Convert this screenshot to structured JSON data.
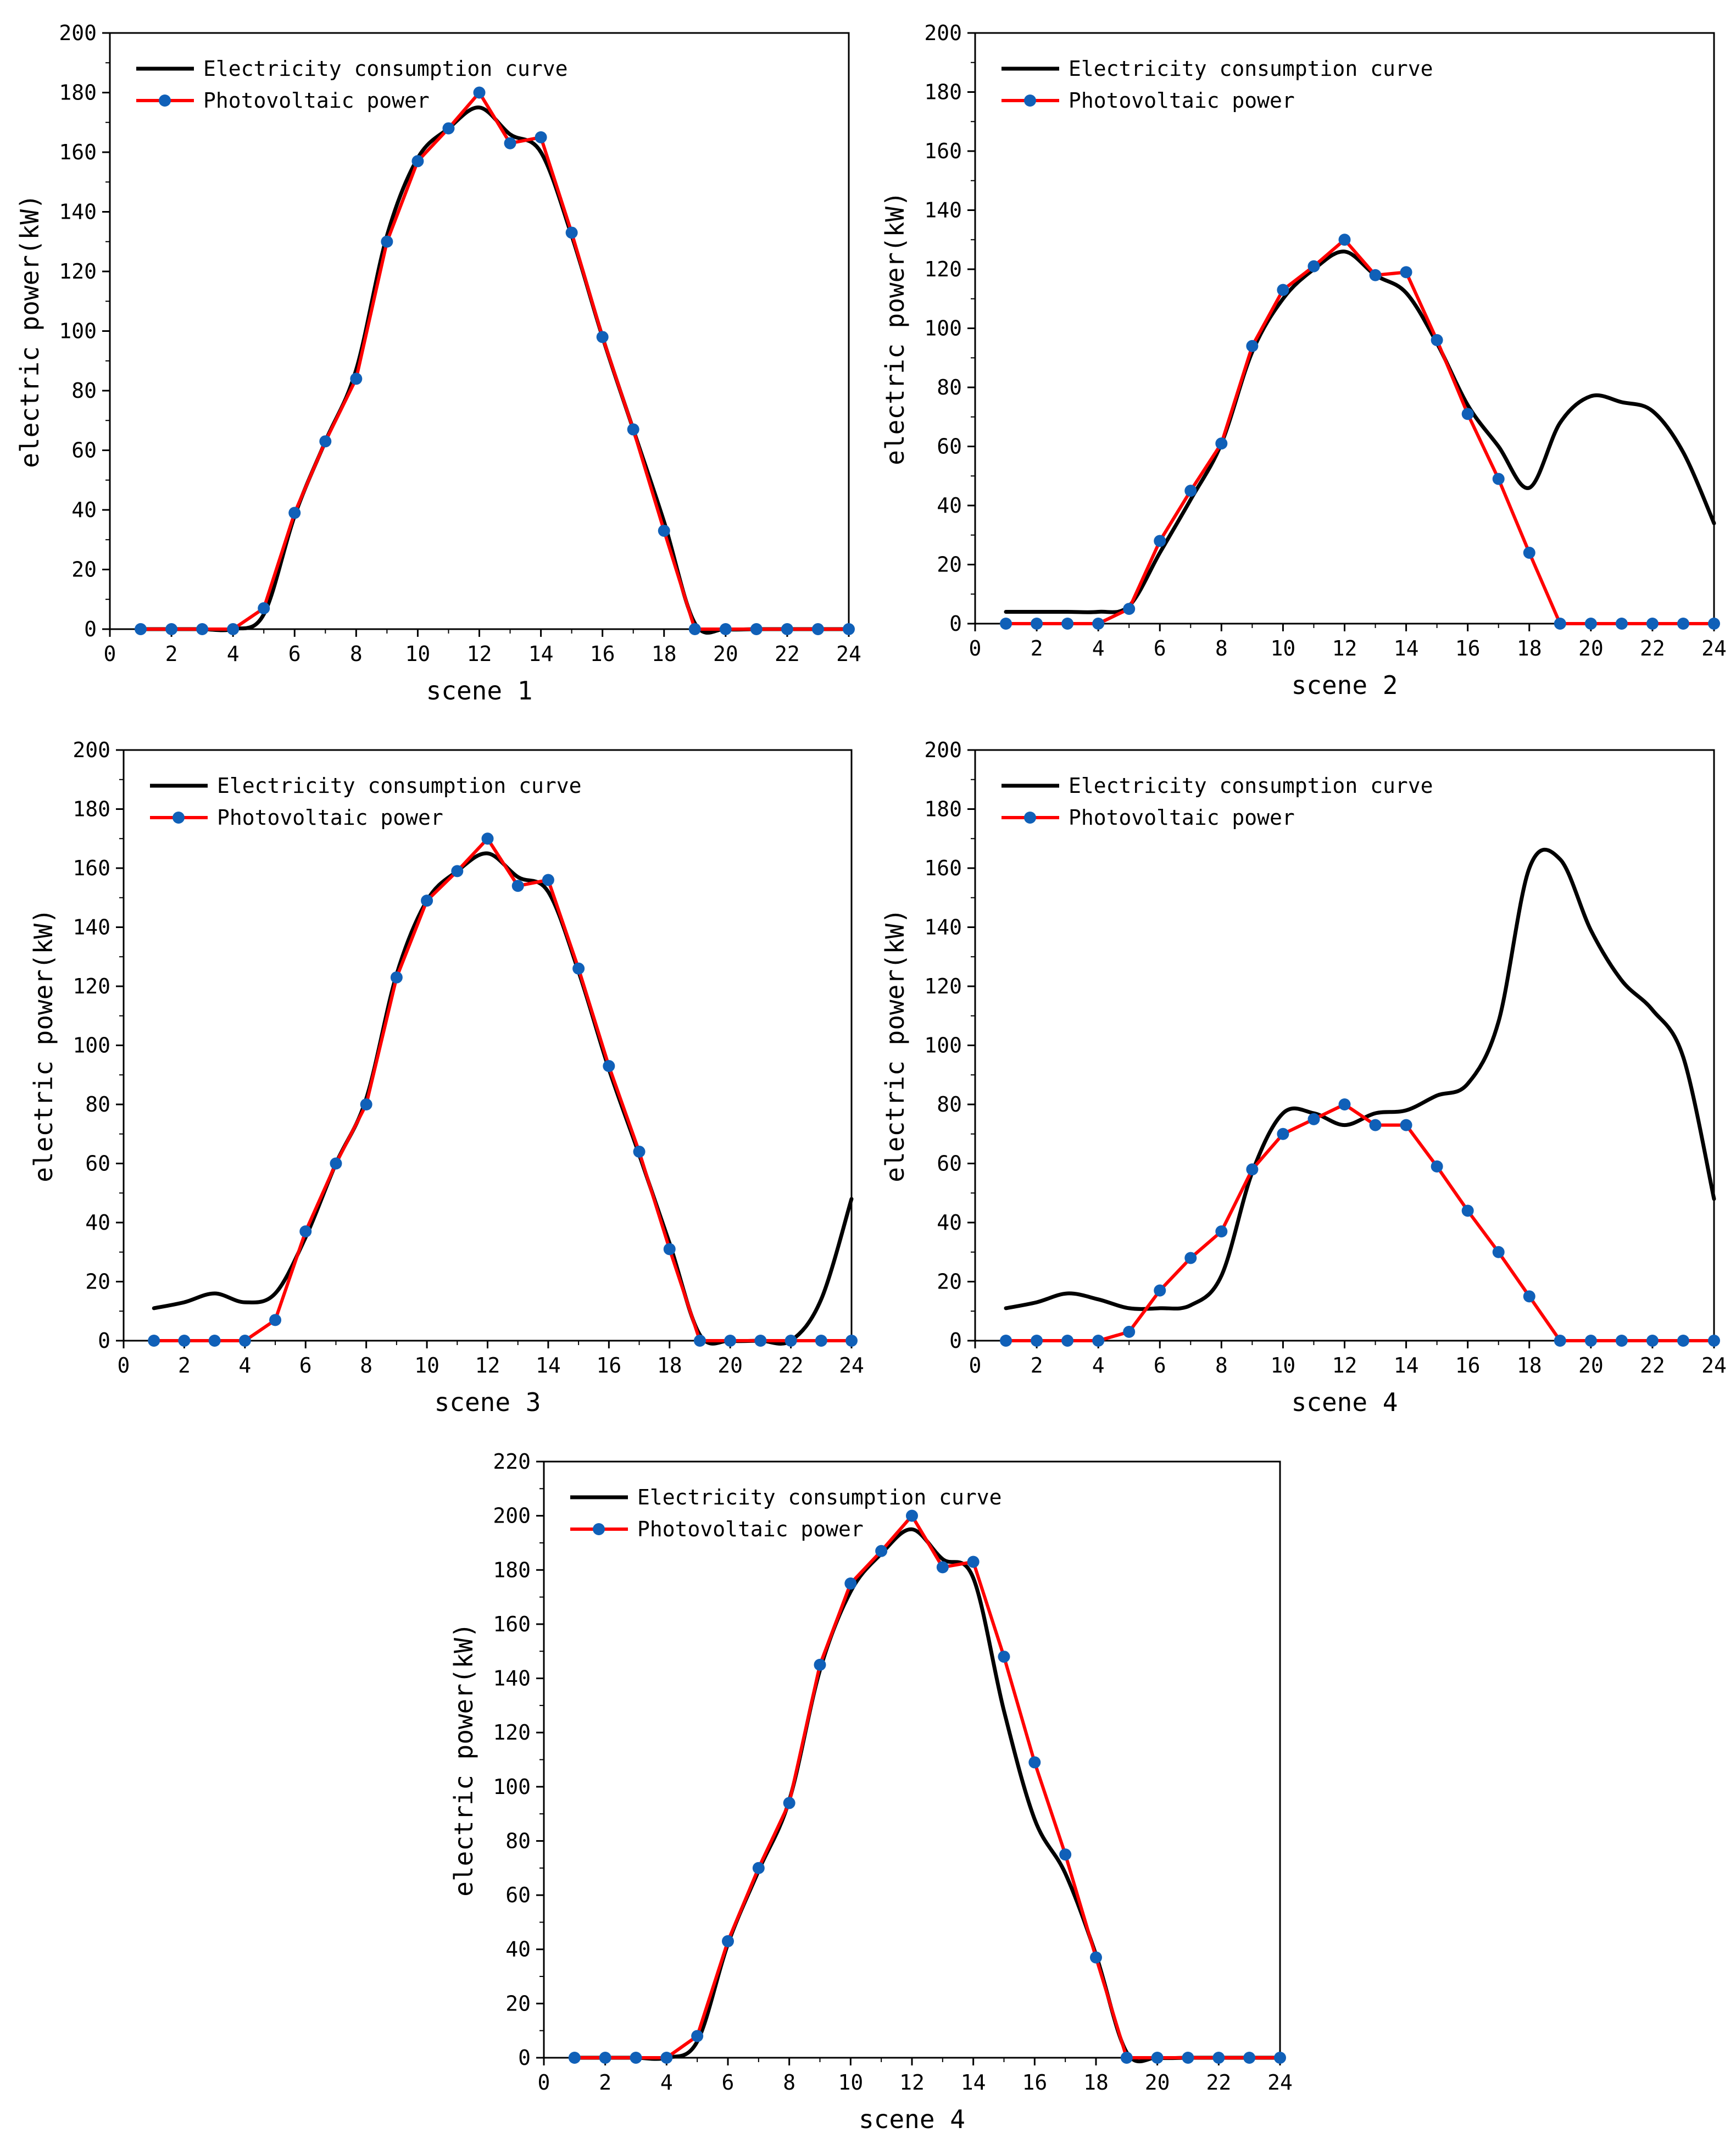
{
  "colors": {
    "consumption_line": "#000000",
    "pv_line": "#ff0000",
    "pv_marker": "#1060b8",
    "axis": "#000000"
  },
  "chart_data": [
    {
      "type": "line",
      "xlabel": "scene 1",
      "ylabel": "electric power(kW)",
      "xlim": [
        0,
        24
      ],
      "ylim": [
        0,
        200
      ],
      "xticks": [
        0,
        2,
        4,
        6,
        8,
        10,
        12,
        14,
        16,
        18,
        20,
        22,
        24
      ],
      "yticks": [
        0,
        20,
        40,
        60,
        80,
        100,
        120,
        140,
        160,
        180,
        200
      ],
      "legend_position": "top-left",
      "series": [
        {
          "name": "Electricity consumption curve",
          "style": "smooth-line",
          "x": [
            1,
            2,
            3,
            4,
            5,
            6,
            7,
            8,
            9,
            10,
            11,
            12,
            13,
            14,
            15,
            16,
            17,
            18,
            19,
            20,
            21,
            22,
            23,
            24
          ],
          "values": [
            0,
            0,
            0,
            0,
            5,
            38,
            63,
            87,
            132,
            158,
            168,
            175,
            166,
            160,
            132,
            98,
            67,
            36,
            2,
            0,
            0,
            0,
            0,
            0
          ]
        },
        {
          "name": "Photovoltaic power",
          "style": "line-markers",
          "x": [
            1,
            2,
            3,
            4,
            5,
            6,
            7,
            8,
            9,
            10,
            11,
            12,
            13,
            14,
            15,
            16,
            17,
            18,
            19,
            20,
            21,
            22,
            23,
            24
          ],
          "values": [
            0,
            0,
            0,
            0,
            7,
            39,
            63,
            84,
            130,
            157,
            168,
            180,
            163,
            165,
            133,
            98,
            67,
            33,
            0,
            0,
            0,
            0,
            0,
            0
          ]
        }
      ]
    },
    {
      "type": "line",
      "xlabel": "scene 2",
      "ylabel": "electric power(kW)",
      "xlim": [
        0,
        24
      ],
      "ylim": [
        0,
        200
      ],
      "xticks": [
        0,
        2,
        4,
        6,
        8,
        10,
        12,
        14,
        16,
        18,
        20,
        22,
        24
      ],
      "yticks": [
        0,
        20,
        40,
        60,
        80,
        100,
        120,
        140,
        160,
        180,
        200
      ],
      "legend_position": "top-left",
      "series": [
        {
          "name": "Electricity consumption curve",
          "style": "smooth-line",
          "x": [
            1,
            2,
            3,
            4,
            5,
            6,
            7,
            8,
            9,
            10,
            11,
            12,
            13,
            14,
            15,
            16,
            17,
            18,
            19,
            20,
            21,
            22,
            23,
            24
          ],
          "values": [
            4,
            4,
            4,
            4,
            6,
            24,
            42,
            61,
            92,
            110,
            120,
            126,
            118,
            112,
            95,
            74,
            60,
            46,
            68,
            77,
            75,
            72,
            58,
            34
          ]
        },
        {
          "name": "Photovoltaic power",
          "style": "line-markers",
          "x": [
            1,
            2,
            3,
            4,
            5,
            6,
            7,
            8,
            9,
            10,
            11,
            12,
            13,
            14,
            15,
            16,
            17,
            18,
            19,
            20,
            21,
            22,
            23,
            24
          ],
          "values": [
            0,
            0,
            0,
            0,
            5,
            28,
            45,
            61,
            94,
            113,
            121,
            130,
            118,
            119,
            96,
            71,
            49,
            24,
            0,
            0,
            0,
            0,
            0,
            0
          ]
        }
      ]
    },
    {
      "type": "line",
      "xlabel": "scene 3",
      "ylabel": "electric power(kW)",
      "xlim": [
        0,
        24
      ],
      "ylim": [
        0,
        200
      ],
      "xticks": [
        0,
        2,
        4,
        6,
        8,
        10,
        12,
        14,
        16,
        18,
        20,
        22,
        24
      ],
      "yticks": [
        0,
        20,
        40,
        60,
        80,
        100,
        120,
        140,
        160,
        180,
        200
      ],
      "legend_position": "top-left",
      "series": [
        {
          "name": "Electricity consumption curve",
          "style": "smooth-line",
          "x": [
            1,
            2,
            3,
            4,
            5,
            6,
            7,
            8,
            9,
            10,
            11,
            12,
            13,
            14,
            15,
            16,
            17,
            18,
            19,
            20,
            21,
            22,
            23,
            24
          ],
          "values": [
            11,
            13,
            16,
            13,
            16,
            35,
            60,
            82,
            124,
            149,
            159,
            165,
            157,
            152,
            125,
            92,
            63,
            33,
            2,
            0,
            0,
            0,
            14,
            48
          ]
        },
        {
          "name": "Photovoltaic power",
          "style": "line-markers",
          "x": [
            1,
            2,
            3,
            4,
            5,
            6,
            7,
            8,
            9,
            10,
            11,
            12,
            13,
            14,
            15,
            16,
            17,
            18,
            19,
            20,
            21,
            22,
            23,
            24
          ],
          "values": [
            0,
            0,
            0,
            0,
            7,
            37,
            60,
            80,
            123,
            149,
            159,
            170,
            154,
            156,
            126,
            93,
            64,
            31,
            0,
            0,
            0,
            0,
            0,
            0
          ]
        }
      ]
    },
    {
      "type": "line",
      "xlabel": "scene 4",
      "ylabel": "electric power(kW)",
      "xlim": [
        0,
        24
      ],
      "ylim": [
        0,
        200
      ],
      "xticks": [
        0,
        2,
        4,
        6,
        8,
        10,
        12,
        14,
        16,
        18,
        20,
        22,
        24
      ],
      "yticks": [
        0,
        20,
        40,
        60,
        80,
        100,
        120,
        140,
        160,
        180,
        200
      ],
      "legend_position": "top-left",
      "series": [
        {
          "name": "Electricity consumption curve",
          "style": "smooth-line",
          "x": [
            1,
            2,
            3,
            4,
            5,
            6,
            7,
            8,
            9,
            10,
            11,
            12,
            13,
            14,
            15,
            16,
            17,
            18,
            19,
            20,
            21,
            22,
            23,
            24
          ],
          "values": [
            11,
            13,
            16,
            14,
            11,
            11,
            12,
            22,
            57,
            77,
            77,
            73,
            77,
            78,
            83,
            87,
            108,
            160,
            163,
            139,
            122,
            112,
            96,
            48
          ]
        },
        {
          "name": "Photovoltaic power",
          "style": "line-markers",
          "x": [
            1,
            2,
            3,
            4,
            5,
            6,
            7,
            8,
            9,
            10,
            11,
            12,
            13,
            14,
            15,
            16,
            17,
            18,
            19,
            20,
            21,
            22,
            23,
            24
          ],
          "values": [
            0,
            0,
            0,
            0,
            3,
            17,
            28,
            37,
            58,
            70,
            75,
            80,
            73,
            73,
            59,
            44,
            30,
            15,
            0,
            0,
            0,
            0,
            0,
            0
          ]
        }
      ]
    },
    {
      "type": "line",
      "xlabel": "scene 4",
      "ylabel": "electric power(kW)",
      "xlim": [
        0,
        24
      ],
      "ylim": [
        0,
        220
      ],
      "xticks": [
        0,
        2,
        4,
        6,
        8,
        10,
        12,
        14,
        16,
        18,
        20,
        22,
        24
      ],
      "yticks": [
        0,
        20,
        40,
        60,
        80,
        100,
        120,
        140,
        160,
        180,
        200,
        220
      ],
      "legend_position": "top-left",
      "series": [
        {
          "name": "Electricity consumption curve",
          "style": "smooth-line",
          "x": [
            1,
            2,
            3,
            4,
            5,
            6,
            7,
            8,
            9,
            10,
            11,
            12,
            13,
            14,
            15,
            16,
            17,
            18,
            19,
            20,
            21,
            22,
            23,
            24
          ],
          "values": [
            0,
            0,
            0,
            0,
            6,
            42,
            69,
            95,
            143,
            172,
            186,
            195,
            184,
            177,
            128,
            88,
            68,
            38,
            2,
            0,
            0,
            0,
            0,
            0
          ]
        },
        {
          "name": "Photovoltaic power",
          "style": "line-markers",
          "x": [
            1,
            2,
            3,
            4,
            5,
            6,
            7,
            8,
            9,
            10,
            11,
            12,
            13,
            14,
            15,
            16,
            17,
            18,
            19,
            20,
            21,
            22,
            23,
            24
          ],
          "values": [
            0,
            0,
            0,
            0,
            8,
            43,
            70,
            94,
            145,
            175,
            187,
            200,
            181,
            183,
            148,
            109,
            75,
            37,
            0,
            0,
            0,
            0,
            0,
            0
          ]
        }
      ]
    }
  ]
}
